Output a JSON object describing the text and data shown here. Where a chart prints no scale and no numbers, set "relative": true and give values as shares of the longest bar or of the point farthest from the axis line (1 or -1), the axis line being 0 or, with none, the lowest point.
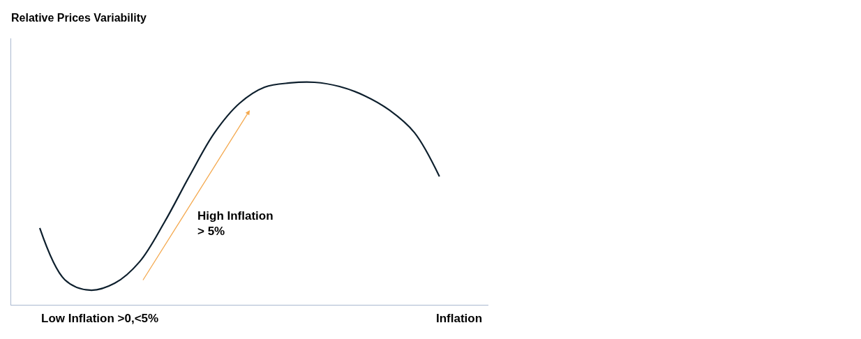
{
  "chart_data": {
    "type": "line",
    "relative": true,
    "title": "Relative Prices Variability",
    "xlabel": "Inflation",
    "categories": [
      null,
      null,
      null,
      null,
      null,
      null,
      null,
      null,
      null,
      null,
      null,
      null,
      null,
      null,
      null,
      null,
      null
    ],
    "series": [
      {
        "color": "#0d1f2d",
        "values": [
          0.345,
          0.113,
          0.066,
          0.097,
          0.194,
          0.373,
          0.58,
          0.774,
          0.906,
          0.978,
          0.997,
          1,
          0.981,
          0.94,
          0.875,
          0.774,
          0.577
        ]
      }
    ],
    "annotations": [
      "Low Inflation >0,<5%",
      "High Inflation\n> 5%"
    ],
    "marker": "none",
    "line_style": "solid"
  }
}
